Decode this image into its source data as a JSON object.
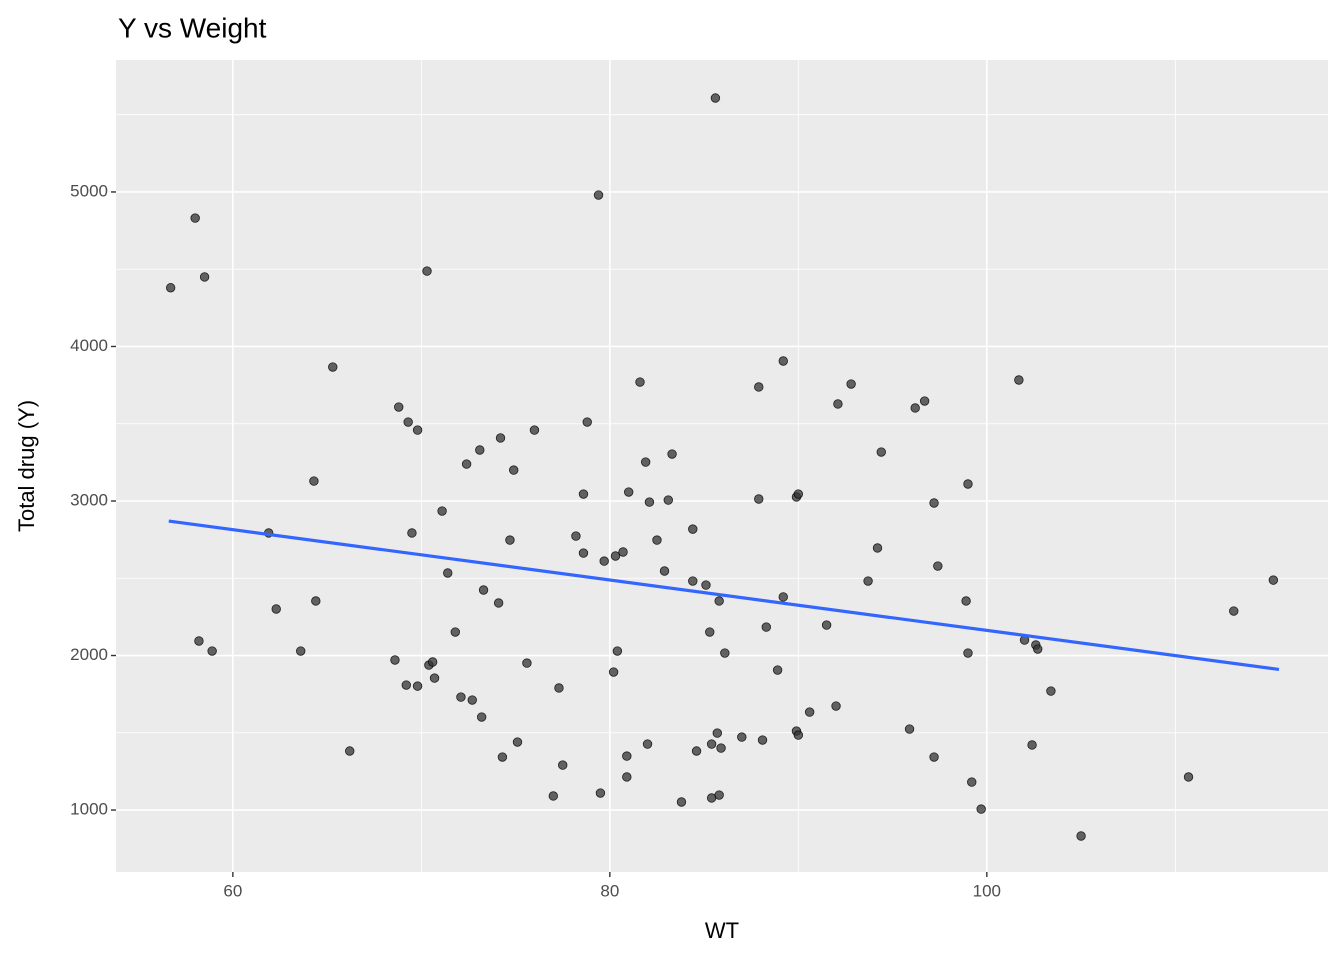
{
  "chart_data": {
    "type": "scatter",
    "title": "Y vs Weight",
    "x_label": "WT",
    "y_label": "Total drug (Y)",
    "xlim": [
      53.8,
      118.1
    ],
    "ylim": [
      599,
      5854
    ],
    "xticks": [
      60,
      80,
      100
    ],
    "yticks": [
      1000,
      2000,
      3000,
      4000,
      5000
    ],
    "x_minor_grid": [
      70,
      90,
      110
    ],
    "y_minor_grid": [
      1500,
      2500,
      3500,
      4500,
      5500
    ],
    "grid": true,
    "point_color": "#333333",
    "x": [
      56.7,
      58.0,
      58.5,
      58.2,
      58.9,
      61.9,
      62.3,
      63.6,
      64.3,
      64.4,
      65.3,
      66.2,
      68.6,
      68.8,
      69.2,
      69.3,
      69.5,
      69.8,
      69.8,
      70.3,
      70.4,
      70.6,
      70.7,
      71.1,
      71.4,
      71.8,
      72.1,
      72.4,
      72.7,
      73.1,
      73.2,
      73.3,
      74.1,
      74.2,
      74.3,
      74.7,
      74.9,
      75.1,
      75.6,
      76.0,
      77.0,
      77.3,
      77.5,
      78.2,
      78.6,
      78.6,
      78.8,
      79.4,
      79.5,
      79.7,
      80.2,
      80.3,
      80.4,
      80.7,
      80.9,
      80.9,
      81.0,
      81.6,
      81.9,
      82.0,
      82.1,
      82.5,
      82.9,
      83.1,
      83.3,
      83.8,
      84.4,
      84.4,
      84.6,
      85.1,
      85.3,
      85.4,
      85.4,
      85.6,
      85.7,
      85.8,
      85.8,
      85.9,
      86.1,
      87.0,
      87.9,
      87.9,
      88.1,
      88.3,
      88.9,
      89.2,
      89.2,
      89.9,
      89.9,
      90.0,
      90.0,
      90.6,
      91.5,
      92.0,
      92.1,
      92.8,
      93.7,
      94.2,
      94.4,
      95.9,
      96.2,
      96.7,
      97.2,
      97.2,
      97.4,
      98.9,
      99.0,
      99.0,
      99.2,
      99.7,
      101.7,
      102.0,
      102.4,
      102.6,
      102.7,
      103.4,
      105.0,
      110.7,
      113.1,
      115.2
    ],
    "values": [
      4380,
      4831,
      4450,
      2094,
      2029,
      2793,
      2301,
      2029,
      3129,
      2353,
      3867,
      1382,
      1971,
      3608,
      1809,
      3511,
      2793,
      3459,
      1802,
      4488,
      1938,
      1958,
      1854,
      2935,
      2534,
      2152,
      1731,
      3239,
      1712,
      3330,
      1602,
      2424,
      2340,
      3408,
      1343,
      2747,
      3200,
      1440,
      1951,
      3459,
      1091,
      1790,
      1291,
      2773,
      3045,
      2663,
      3511,
      4980,
      1110,
      2611,
      1893,
      2644,
      2029,
      2670,
      1214,
      1349,
      3058,
      3770,
      3252,
      1427,
      2993,
      2747,
      2547,
      3006,
      3304,
      1052,
      2482,
      2818,
      1382,
      2456,
      2152,
      1427,
      1078,
      5608,
      1498,
      2353,
      1097,
      1401,
      2016,
      1472,
      3738,
      3013,
      1453,
      2184,
      1906,
      3906,
      2379,
      3026,
      1511,
      3045,
      1485,
      1634,
      2197,
      1673,
      3628,
      3757,
      2482,
      2696,
      3317,
      1524,
      3602,
      3647,
      2987,
      1343,
      2579,
      2353,
      3110,
      2016,
      1181,
      1006,
      3783,
      2100,
      1421,
      2068,
      2042,
      1770,
      832,
      1214,
      2288,
      2488
    ],
    "fit": {
      "color": "#3366ff",
      "x": [
        56.6,
        115.5
      ],
      "values": [
        2870,
        1910
      ]
    }
  }
}
